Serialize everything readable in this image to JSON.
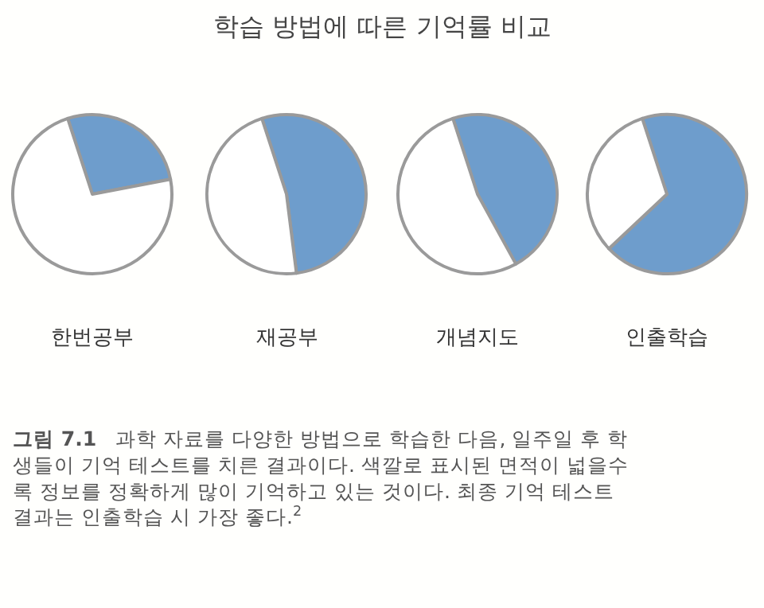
{
  "chart_data": [
    {
      "type": "other",
      "title": "학습 방법에 따른 기억률 비교",
      "annotations": [
        "그림 7.1",
        "과학 자료를 다양한 방법으로 학습한 다음, 일주일 후 학\n생들이 기억 테스트를 치른 결과이다. 색깔로 표시된 면적이 넓을수\n록 정보를 정확하게 많이 기억하고 있는 것이다. 최종 기억 테스트\n결과는 인출학습 시 가장 좋다.$^{2}$"
      ]
    },
    {
      "type": "pie",
      "xlabel": "한번공부",
      "categories": [
        null,
        null
      ],
      "values": [
        27,
        73
      ],
      "colors": [
        "#6e9dcc",
        "#ffffff"
      ]
    },
    {
      "type": "pie",
      "xlabel": "재공부",
      "categories": [
        null,
        null
      ],
      "values": [
        53,
        47
      ],
      "colors": [
        "#6e9dcc",
        "#ffffff"
      ]
    },
    {
      "type": "pie",
      "xlabel": "개념지도",
      "categories": [
        null,
        null
      ],
      "values": [
        47,
        53
      ],
      "colors": [
        "#6e9dcc",
        "#ffffff"
      ]
    },
    {
      "type": "pie",
      "xlabel": "인출학습",
      "categories": [
        null,
        null
      ],
      "values": [
        68,
        32
      ],
      "colors": [
        "#6e9dcc",
        "#ffffff"
      ]
    }
  ]
}
